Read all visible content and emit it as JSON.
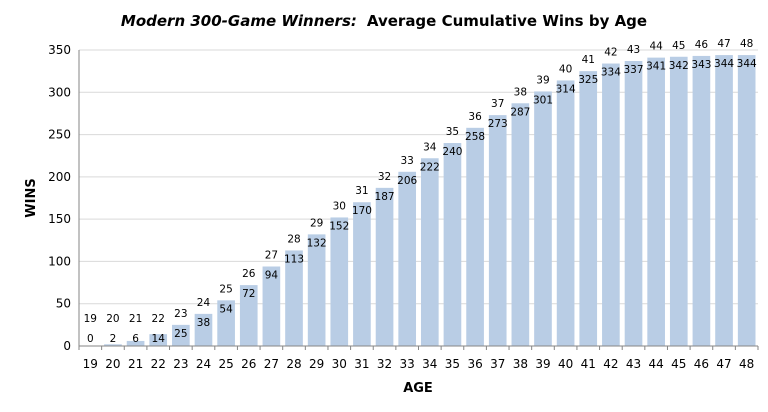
{
  "chart_data": {
    "type": "bar",
    "title_italic": "Modern 300-Game Winners:",
    "title_rest": "Average Cumulative Wins by Age",
    "xlabel": "AGE",
    "ylabel": "WINS",
    "ylim": [
      0,
      350
    ],
    "yticks": [
      "0",
      "50",
      "100",
      "150",
      "200",
      "250",
      "300",
      "350"
    ],
    "grid": true,
    "bar_color": "#b9cde5",
    "categories": [
      "19",
      "20",
      "21",
      "22",
      "23",
      "24",
      "25",
      "26",
      "27",
      "28",
      "29",
      "30",
      "31",
      "32",
      "33",
      "34",
      "35",
      "36",
      "37",
      "38",
      "39",
      "40",
      "41",
      "42",
      "43",
      "44",
      "45",
      "46",
      "47",
      "48"
    ],
    "values": [
      0,
      2,
      6,
      14,
      25,
      38,
      54,
      72,
      94,
      113,
      132,
      152,
      170,
      187,
      206,
      222,
      240,
      258,
      273,
      287,
      301,
      314,
      325,
      334,
      337,
      341,
      342,
      343,
      344,
      344
    ]
  }
}
